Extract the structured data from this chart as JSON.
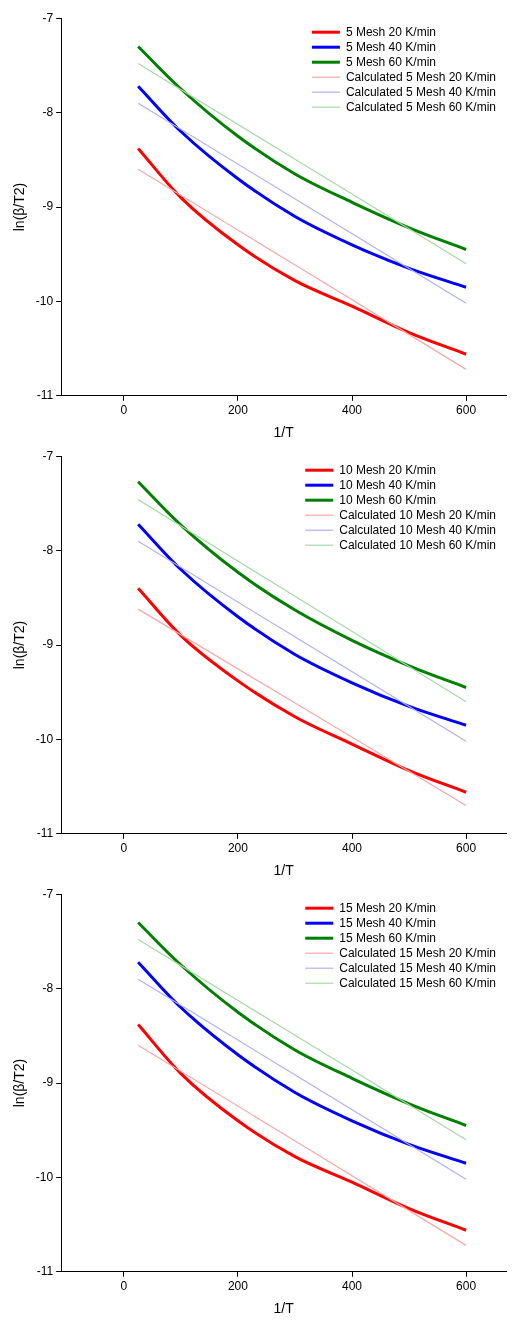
{
  "chart_data": [
    {
      "type": "line",
      "xlabel": "1/T",
      "ylabel": "ln(β/T2)",
      "xlim": [
        -110,
        670
      ],
      "ylim": [
        -11,
        -7
      ],
      "xticks": [
        0,
        200,
        400,
        600
      ],
      "yticks": [
        -11,
        -10,
        -9,
        -8,
        -7
      ],
      "grid": false,
      "legend": "top right",
      "marker": "none",
      "line_style": "solid",
      "series": [
        {
          "name": "5 Mesh 20 K/min",
          "color": "#ff0000",
          "x": [
            25,
            100,
            200,
            300,
            400,
            500,
            600
          ],
          "values": [
            -8.38,
            -8.9,
            -9.4,
            -9.78,
            -10.05,
            -10.33,
            -10.56
          ]
        },
        {
          "name": "5 Mesh 40 K/min",
          "color": "#0000ff",
          "x": [
            25,
            100,
            200,
            300,
            400,
            500,
            600
          ],
          "values": [
            -7.72,
            -8.2,
            -8.7,
            -9.1,
            -9.4,
            -9.65,
            -9.85
          ]
        },
        {
          "name": "5 Mesh 60 K/min",
          "color": "#008000",
          "x": [
            25,
            100,
            200,
            300,
            400,
            500,
            600
          ],
          "values": [
            -7.3,
            -7.75,
            -8.25,
            -8.65,
            -8.95,
            -9.22,
            -9.45
          ]
        },
        {
          "name": "Calculated 5 Mesh 20 K/min",
          "color": "#f7a8a8",
          "x": [
            25,
            600
          ],
          "values": [
            -8.6,
            -10.72
          ]
        },
        {
          "name": "Calculated 5 Mesh 40 K/min",
          "color": "#b0b0f5",
          "x": [
            25,
            600
          ],
          "values": [
            -7.9,
            -10.02
          ]
        },
        {
          "name": "Calculated 5 Mesh 60 K/min",
          "color": "#a8d8a8",
          "x": [
            25,
            600
          ],
          "values": [
            -7.48,
            -9.6
          ]
        }
      ]
    },
    {
      "type": "line",
      "xlabel": "1/T",
      "ylabel": "ln(β/T2)",
      "xlim": [
        -110,
        670
      ],
      "ylim": [
        -11,
        -7
      ],
      "xticks": [
        0,
        200,
        400,
        600
      ],
      "yticks": [
        -11,
        -10,
        -9,
        -8,
        -7
      ],
      "grid": false,
      "legend": "top right",
      "marker": "none",
      "line_style": "solid",
      "series": [
        {
          "name": "10 Mesh 20 K/min",
          "color": "#ff0000",
          "x": [
            25,
            100,
            200,
            300,
            400,
            500,
            600
          ],
          "values": [
            -8.4,
            -8.9,
            -9.38,
            -9.76,
            -10.05,
            -10.33,
            -10.56
          ]
        },
        {
          "name": "10 Mesh 40 K/min",
          "color": "#0000ff",
          "x": [
            25,
            100,
            200,
            300,
            400,
            500,
            600
          ],
          "values": [
            -7.72,
            -8.2,
            -8.7,
            -9.1,
            -9.4,
            -9.65,
            -9.85
          ]
        },
        {
          "name": "10 Mesh 60 K/min",
          "color": "#008000",
          "x": [
            25,
            100,
            200,
            300,
            400,
            500,
            600
          ],
          "values": [
            -7.27,
            -7.73,
            -8.23,
            -8.63,
            -8.95,
            -9.22,
            -9.45
          ]
        },
        {
          "name": "Calculated 10 Mesh 20 K/min",
          "color": "#f7a8a8",
          "x": [
            25,
            600
          ],
          "values": [
            -8.62,
            -10.7
          ]
        },
        {
          "name": "Calculated 10 Mesh 40 K/min",
          "color": "#b0b0f5",
          "x": [
            25,
            600
          ],
          "values": [
            -7.9,
            -10.02
          ]
        },
        {
          "name": "Calculated 10 Mesh 60 K/min",
          "color": "#a8d8a8",
          "x": [
            25,
            600
          ],
          "values": [
            -7.46,
            -9.6
          ]
        }
      ]
    },
    {
      "type": "line",
      "xlabel": "1/T",
      "ylabel": "ln(β/T2)",
      "xlim": [
        -110,
        670
      ],
      "ylim": [
        -11,
        -7
      ],
      "xticks": [
        0,
        200,
        400,
        600
      ],
      "yticks": [
        -11,
        -10,
        -9,
        -8,
        -7
      ],
      "grid": false,
      "legend": "top right",
      "marker": "none",
      "line_style": "solid",
      "series": [
        {
          "name": "15 Mesh 20 K/min",
          "color": "#ff0000",
          "x": [
            25,
            100,
            200,
            300,
            400,
            500,
            600
          ],
          "values": [
            -8.38,
            -8.9,
            -9.4,
            -9.78,
            -10.05,
            -10.33,
            -10.56
          ]
        },
        {
          "name": "15 Mesh 40 K/min",
          "color": "#0000ff",
          "x": [
            25,
            100,
            200,
            300,
            400,
            500,
            600
          ],
          "values": [
            -7.72,
            -8.2,
            -8.7,
            -9.1,
            -9.4,
            -9.65,
            -9.85
          ]
        },
        {
          "name": "15 Mesh 60 K/min",
          "color": "#008000",
          "x": [
            25,
            100,
            200,
            300,
            400,
            500,
            600
          ],
          "values": [
            -7.3,
            -7.75,
            -8.25,
            -8.65,
            -8.95,
            -9.22,
            -9.45
          ]
        },
        {
          "name": "Calculated 15 Mesh 20 K/min",
          "color": "#f7a8a8",
          "x": [
            25,
            600
          ],
          "values": [
            -8.6,
            -10.72
          ]
        },
        {
          "name": "Calculated 15 Mesh 40 K/min",
          "color": "#b0b0f5",
          "x": [
            25,
            600
          ],
          "values": [
            -7.9,
            -10.02
          ]
        },
        {
          "name": "Calculated 15 Mesh 60 K/min",
          "color": "#a8d8a8",
          "x": [
            25,
            600
          ],
          "values": [
            -7.48,
            -9.6
          ]
        }
      ]
    }
  ]
}
